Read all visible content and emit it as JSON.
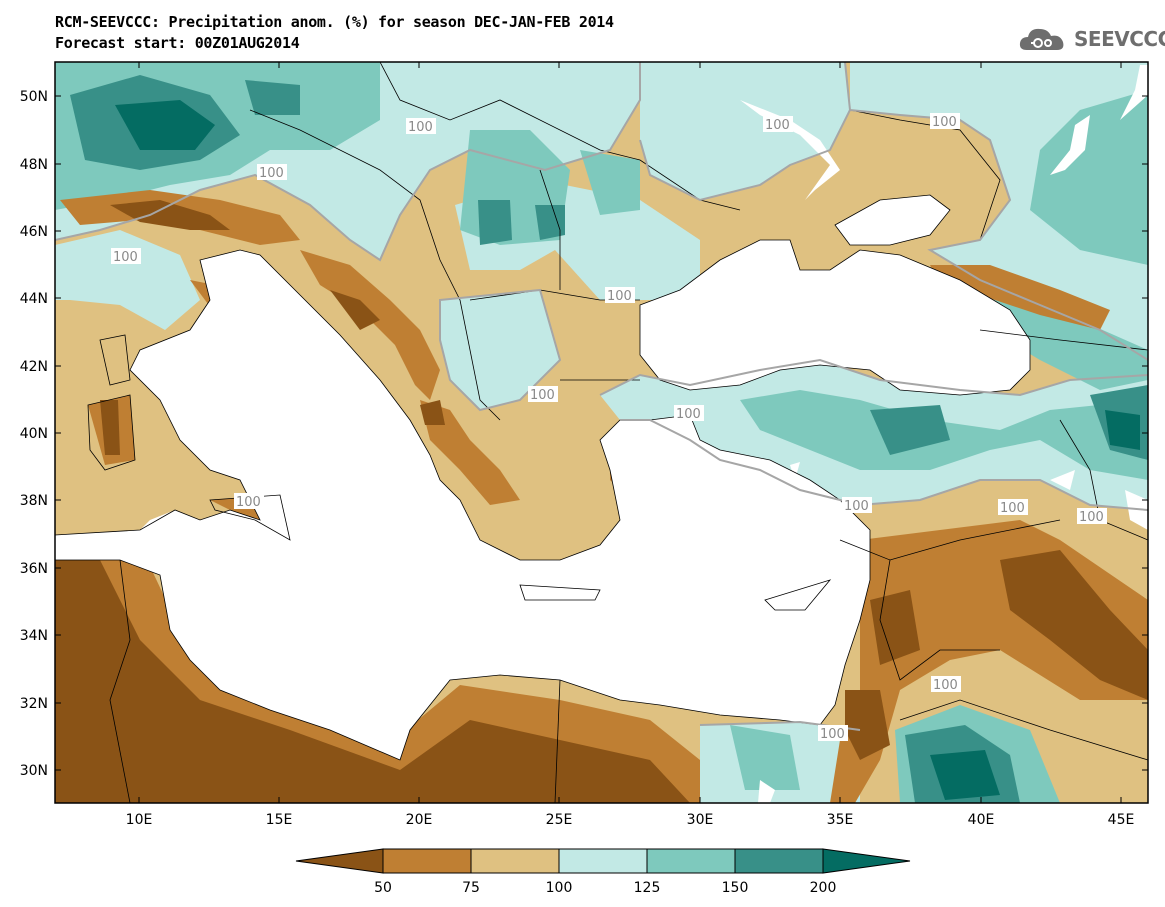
{
  "header": {
    "title_line1": "RCM-SEEVCCC: Precipitation anom. (%) for season DEC-JAN-FEB 2014",
    "title_line2": "Forecast start: 00Z01AUG2014",
    "logo_text": "SEEVCCC"
  },
  "map": {
    "lat_labels": [
      "50N",
      "48N",
      "46N",
      "44N",
      "42N",
      "40N",
      "38N",
      "36N",
      "34N",
      "32N",
      "30N"
    ],
    "lon_labels": [
      "10E",
      "15E",
      "20E",
      "25E",
      "30E",
      "35E",
      "40E",
      "45E"
    ],
    "contour_label": "100"
  },
  "colorbar": {
    "labels": [
      "50",
      "75",
      "100",
      "125",
      "150",
      "200"
    ],
    "colors": [
      "#8a5316",
      "#bf7f33",
      "#dfc181",
      "#c2e9e5",
      "#7ec9bd",
      "#389088",
      "#046c62"
    ]
  },
  "colors": {
    "sea": "#ffffff",
    "background_field": "#dfc181",
    "contour_line": "#a6a6a6"
  }
}
